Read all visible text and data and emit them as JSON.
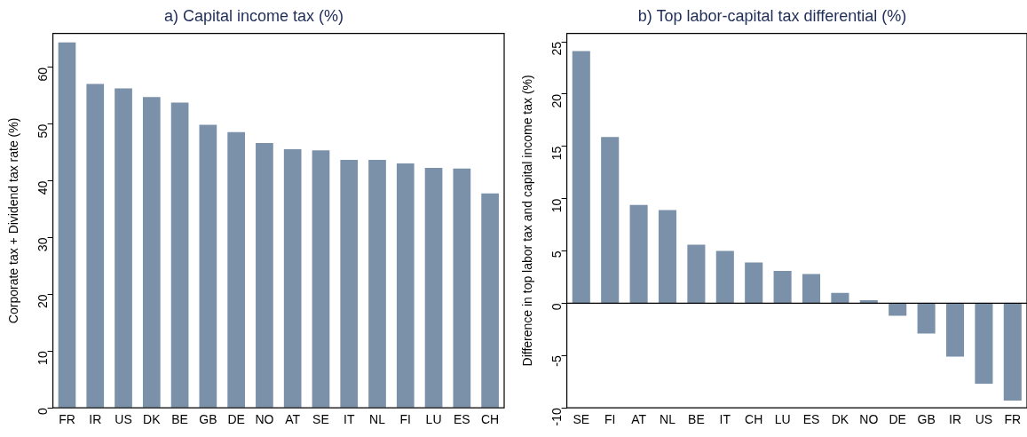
{
  "chart_data": [
    {
      "type": "bar",
      "title": "a) Capital income tax (%)",
      "ylabel": "Corporate tax + Dividend tax rate (%)",
      "categories": [
        "FR",
        "IR",
        "US",
        "DK",
        "BE",
        "GB",
        "DE",
        "NO",
        "AT",
        "SE",
        "IT",
        "NL",
        "FI",
        "LU",
        "ES",
        "CH"
      ],
      "values": [
        64.4,
        57.1,
        56.3,
        54.8,
        53.8,
        49.9,
        48.6,
        46.7,
        45.6,
        45.4,
        43.7,
        43.7,
        43.1,
        42.3,
        42.2,
        37.8
      ],
      "color": "#7b91aa",
      "ylim": [
        0,
        66
      ],
      "yticks": [
        0,
        10,
        20,
        30,
        40,
        50,
        60
      ],
      "grid": false,
      "legend": false
    },
    {
      "type": "bar",
      "title": "b) Top labor-capital tax differential (%)",
      "ylabel": "Difference in top labor tax and capital income tax (%)",
      "categories": [
        "SE",
        "FI",
        "AT",
        "NL",
        "BE",
        "IT",
        "CH",
        "LU",
        "ES",
        "DK",
        "NO",
        "DE",
        "GB",
        "IR",
        "US",
        "FR"
      ],
      "values": [
        24.1,
        15.9,
        9.4,
        8.9,
        5.6,
        5.0,
        3.9,
        3.1,
        2.8,
        1.0,
        0.3,
        -1.2,
        -2.9,
        -5.1,
        -7.7,
        -9.3
      ],
      "color": "#7b91aa",
      "ylim": [
        -10,
        25.8
      ],
      "yticks": [
        -10,
        -5,
        0,
        5,
        10,
        15,
        20,
        25
      ],
      "grid": false,
      "legend": false,
      "ref_lines": [
        {
          "axis": "y",
          "value": 0,
          "color": "#000000"
        }
      ]
    }
  ]
}
